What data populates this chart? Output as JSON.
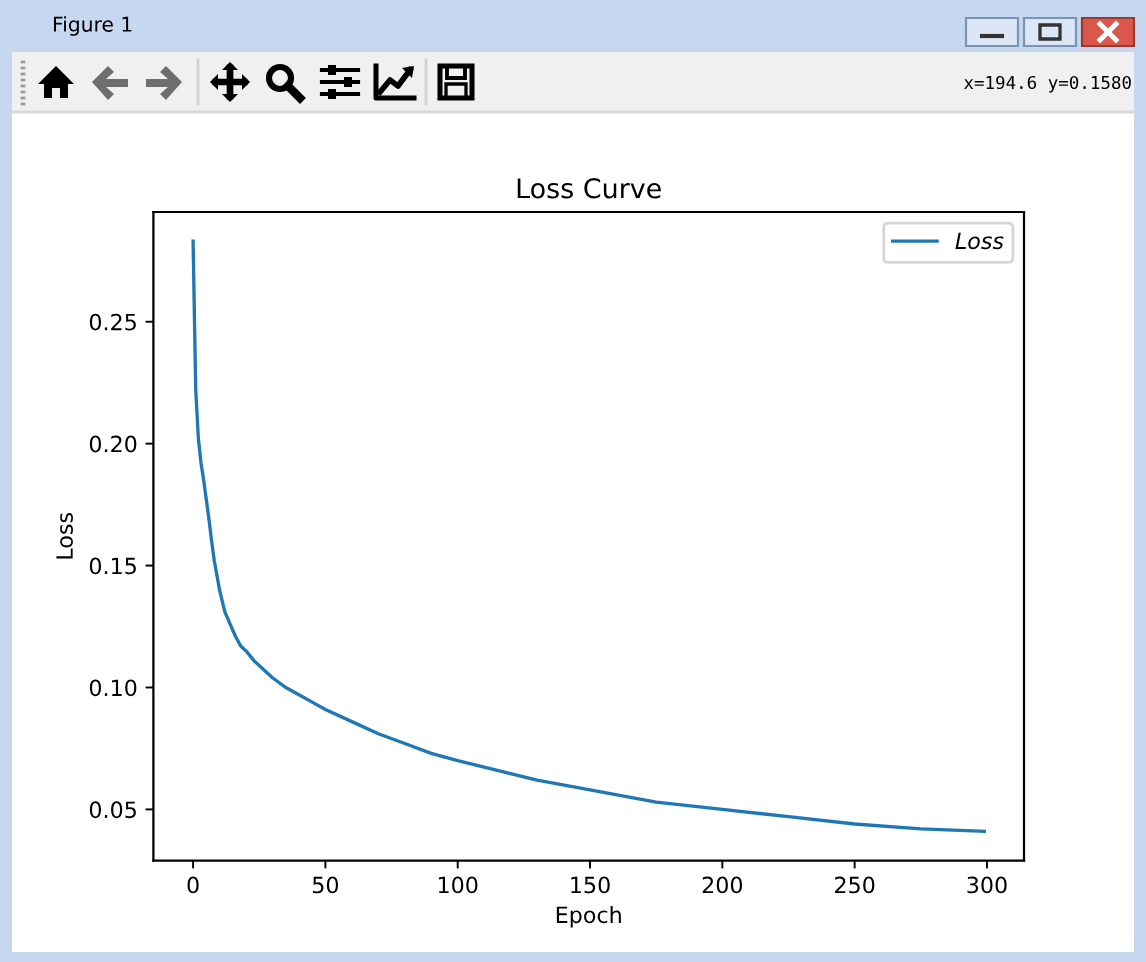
{
  "chart_data": {
    "type": "line",
    "title": "Loss Curve",
    "xlabel": "Epoch",
    "ylabel": "Loss",
    "x": [
      0,
      1,
      2,
      3,
      4,
      5,
      6,
      7,
      8,
      9,
      10,
      12,
      14,
      16,
      18,
      20,
      23,
      26,
      30,
      35,
      40,
      45,
      50,
      60,
      70,
      80,
      90,
      100,
      115,
      130,
      150,
      175,
      200,
      225,
      250,
      275,
      299
    ],
    "series": [
      {
        "name": "Loss",
        "color": "#1f77b4",
        "values": [
          0.283,
          0.222,
          0.202,
          0.192,
          0.185,
          0.177,
          0.169,
          0.16,
          0.152,
          0.146,
          0.14,
          0.131,
          0.126,
          0.121,
          0.117,
          0.115,
          0.111,
          0.108,
          0.104,
          0.1,
          0.097,
          0.094,
          0.091,
          0.086,
          0.081,
          0.077,
          0.073,
          0.07,
          0.066,
          0.062,
          0.058,
          0.053,
          0.05,
          0.047,
          0.044,
          0.042,
          0.041
        ]
      }
    ],
    "xlim": [
      -15,
      314
    ],
    "ylim": [
      0.029,
      0.295
    ],
    "xticks": [
      0,
      50,
      100,
      150,
      200,
      250,
      300
    ],
    "yticks": [
      0.05,
      {
        "value": 0.1,
        "label": "0.10"
      },
      0.15,
      {
        "value": 0.2,
        "label": "0.20"
      },
      0.25
    ],
    "legend": "top right",
    "marker": "none",
    "line_style": "solid",
    "annotations": [
      "Figure 1",
      "x=194.6 y=0.1580"
    ]
  }
}
